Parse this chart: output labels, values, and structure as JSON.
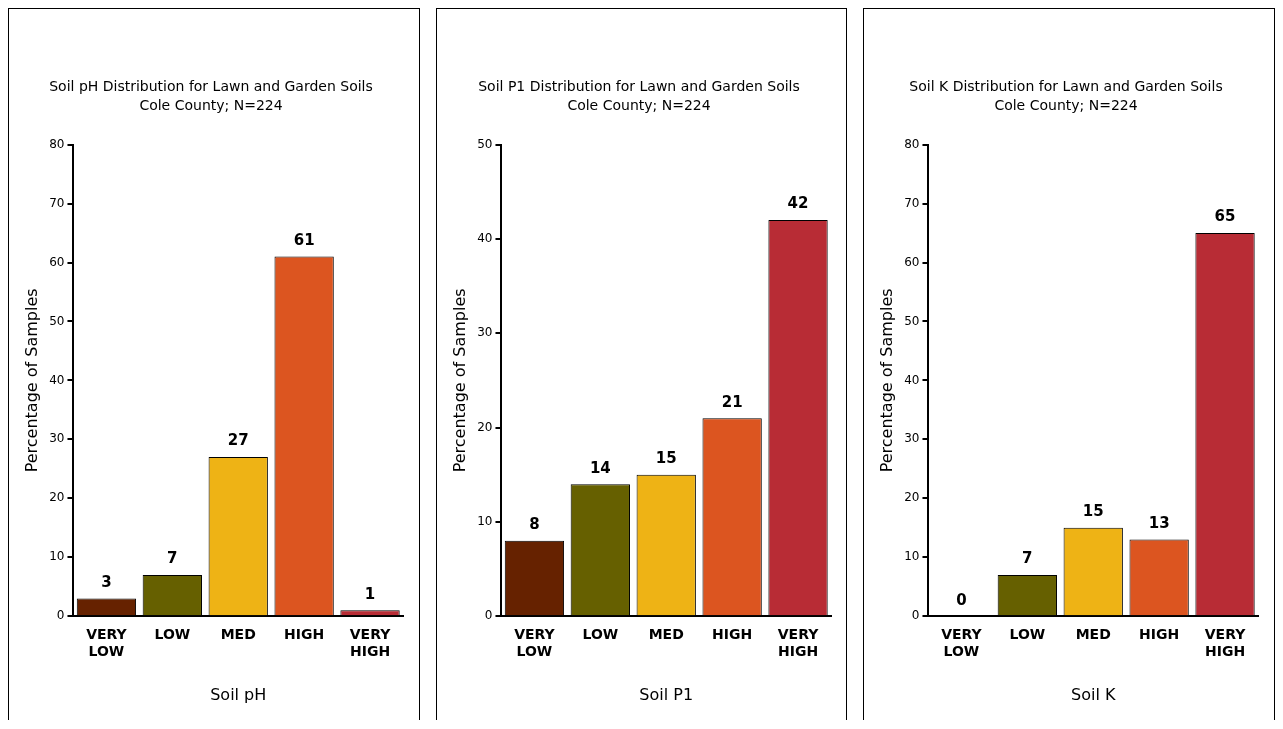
{
  "chart_data": [
    {
      "type": "bar",
      "title": "Soil pH Distribution for Lawn and Garden Soils",
      "subtitle": "Cole County; N=224",
      "xlabel": "Soil pH",
      "ylabel": "Percentage of Samples",
      "categories": [
        "VERY LOW",
        "LOW",
        "MED",
        "HIGH",
        "VERY HIGH"
      ],
      "values": [
        3,
        7,
        27,
        61,
        1
      ],
      "colors": [
        "#662200",
        "#666000",
        "#eeb315",
        "#dc5520",
        "#b82c35"
      ],
      "ylim": [
        0,
        80
      ],
      "yticks": [
        0,
        10,
        20,
        30,
        40,
        50,
        60,
        70,
        80
      ],
      "data_labels": true
    },
    {
      "type": "bar",
      "title": "Soil P1 Distribution for Lawn and Garden Soils",
      "subtitle": "Cole County; N=224",
      "xlabel": "Soil P1",
      "ylabel": "Percentage of Samples",
      "categories": [
        "VERY LOW",
        "LOW",
        "MED",
        "HIGH",
        "VERY HIGH"
      ],
      "values": [
        8,
        14,
        15,
        21,
        42
      ],
      "colors": [
        "#662200",
        "#666000",
        "#eeb315",
        "#dc5520",
        "#b82c35"
      ],
      "ylim": [
        0,
        50
      ],
      "yticks": [
        0,
        10,
        20,
        30,
        40,
        50
      ],
      "data_labels": true
    },
    {
      "type": "bar",
      "title": "Soil K Distribution for Lawn and Garden Soils",
      "subtitle": "Cole County; N=224",
      "xlabel": "Soil K",
      "ylabel": "Percentage of Samples",
      "categories": [
        "VERY LOW",
        "LOW",
        "MED",
        "HIGH",
        "VERY HIGH"
      ],
      "values": [
        0,
        7,
        15,
        13,
        65
      ],
      "colors": [
        "#662200",
        "#666000",
        "#eeb315",
        "#dc5520",
        "#b82c35"
      ],
      "ylim": [
        0,
        80
      ],
      "yticks": [
        0,
        10,
        20,
        30,
        40,
        50,
        60,
        70,
        80
      ],
      "data_labels": true
    }
  ]
}
